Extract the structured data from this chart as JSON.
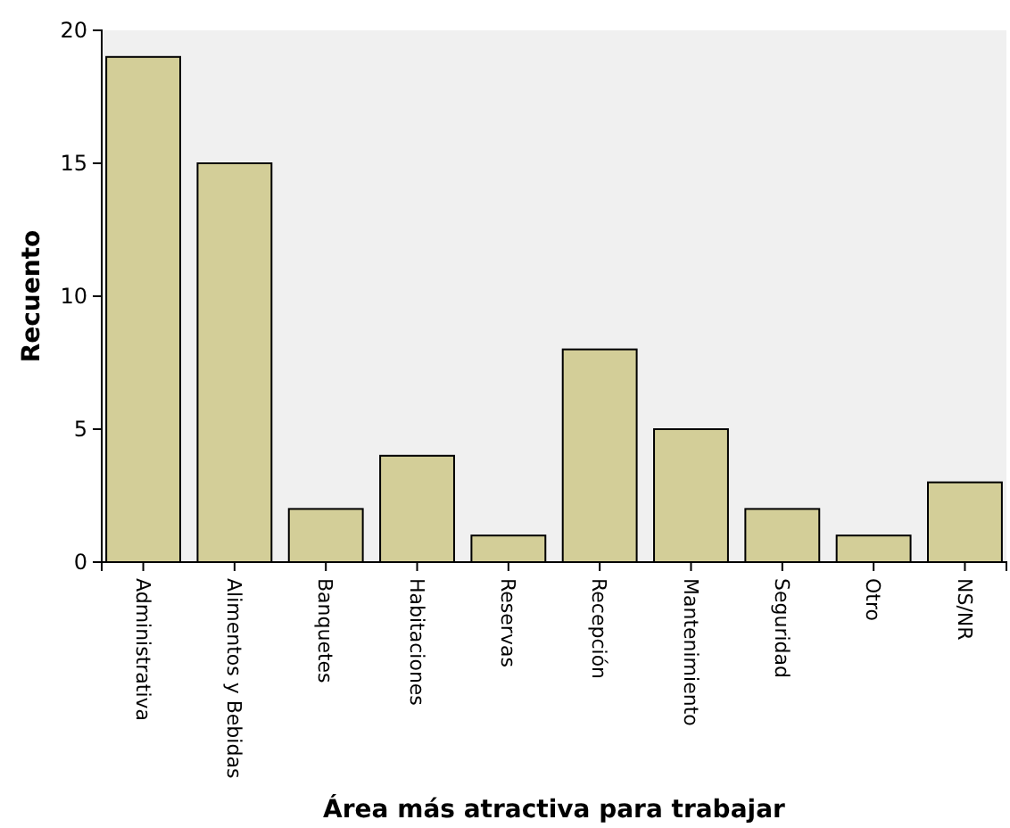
{
  "chart_data": {
    "type": "bar",
    "xlabel": "Área más atractiva para trabajar",
    "ylabel": "Recuento",
    "categories": [
      "Administrativa",
      "Alimentos y Bebidas",
      "Banquetes",
      "Habitaciones",
      "Reservas",
      "Recepción",
      "Mantenimiento",
      "Seguridad",
      "Otro",
      "NS/NR"
    ],
    "values": [
      19,
      15,
      2,
      4,
      1,
      8,
      5,
      2,
      1,
      3
    ],
    "color": "#d3ce98",
    "ylim": [
      0,
      20
    ],
    "yticks": [
      0,
      5,
      10,
      15,
      20
    ],
    "grid": false
  }
}
